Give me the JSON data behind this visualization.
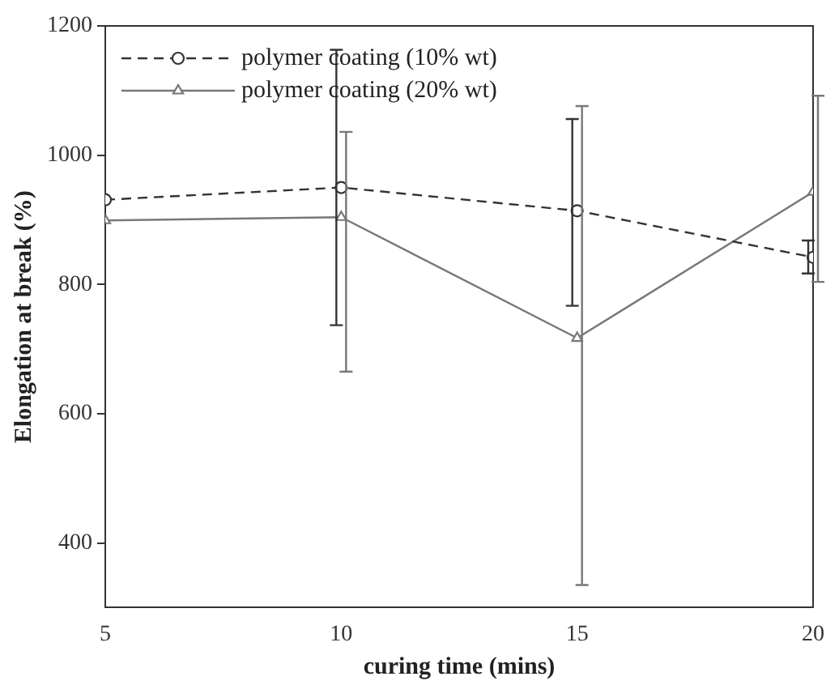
{
  "chart_data": {
    "type": "line",
    "xlabel": "curing time (mins)",
    "ylabel": "Elongation at break (%)",
    "x": [
      5,
      10,
      15,
      20
    ],
    "series": [
      {
        "name": "polymer coating (10% wt)",
        "color": "#333333",
        "marker": "circle",
        "line_style": "dashed",
        "values": [
          931,
          950,
          914,
          842
        ],
        "errors": [
          null,
          [
            737,
            1163
          ],
          [
            767,
            1056
          ],
          [
            817,
            868
          ]
        ]
      },
      {
        "name": "polymer coating (20% wt)",
        "color": "#777777",
        "marker": "triangle",
        "line_style": "solid",
        "values": [
          899,
          904,
          717,
          943
        ],
        "errors": [
          null,
          [
            665,
            1036
          ],
          [
            335,
            1076
          ],
          [
            804,
            1092
          ]
        ]
      }
    ],
    "xlim": [
      5,
      20
    ],
    "xticks": [
      5,
      10,
      15,
      20
    ],
    "ylim": [
      300,
      1200
    ],
    "yticks": [
      400,
      600,
      800,
      1000,
      1200
    ],
    "grid": false,
    "legend": "top left"
  }
}
